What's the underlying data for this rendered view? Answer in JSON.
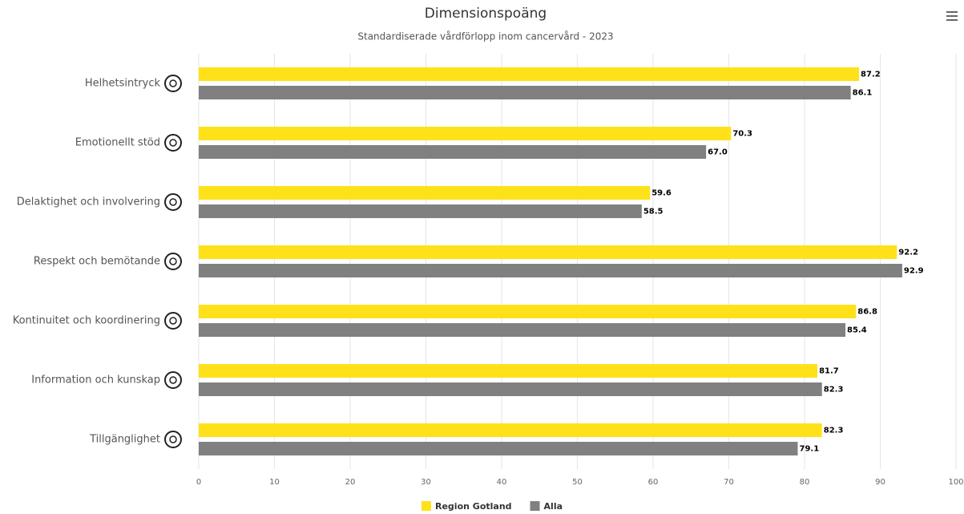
{
  "chart_data": {
    "type": "bar",
    "orientation": "horizontal",
    "title": "Dimensionspoäng",
    "subtitle": "Standardiserade vårdförlopp inom cancervård - 2023",
    "categories": [
      "Helhetsintryck",
      "Emotionellt stöd",
      "Delaktighet och involvering",
      "Respekt och bemötande",
      "Kontinuitet och koordinering",
      "Information och kunskap",
      "Tillgänglighet"
    ],
    "series": [
      {
        "name": "Region Gotland",
        "color": "#ffe119",
        "values": [
          87.2,
          70.3,
          59.6,
          92.2,
          86.8,
          81.7,
          82.3
        ],
        "value_labels": [
          "87.2",
          "70.3",
          "59.6",
          "92.2",
          "86.8",
          "81.7",
          "82.3"
        ]
      },
      {
        "name": "Alla",
        "color": "#808080",
        "values": [
          86.1,
          67,
          58.5,
          92.9,
          85.4,
          82.3,
          79.1
        ],
        "value_labels": [
          "86.1",
          "67.0",
          "58.5",
          "92.9",
          "85.4",
          "82.3",
          "79.1"
        ]
      }
    ],
    "xlim": [
      0,
      100
    ],
    "xticks": [
      0,
      10,
      20,
      30,
      40,
      50,
      60,
      70,
      80,
      90,
      100
    ],
    "grid": true,
    "legend": "bottom"
  }
}
